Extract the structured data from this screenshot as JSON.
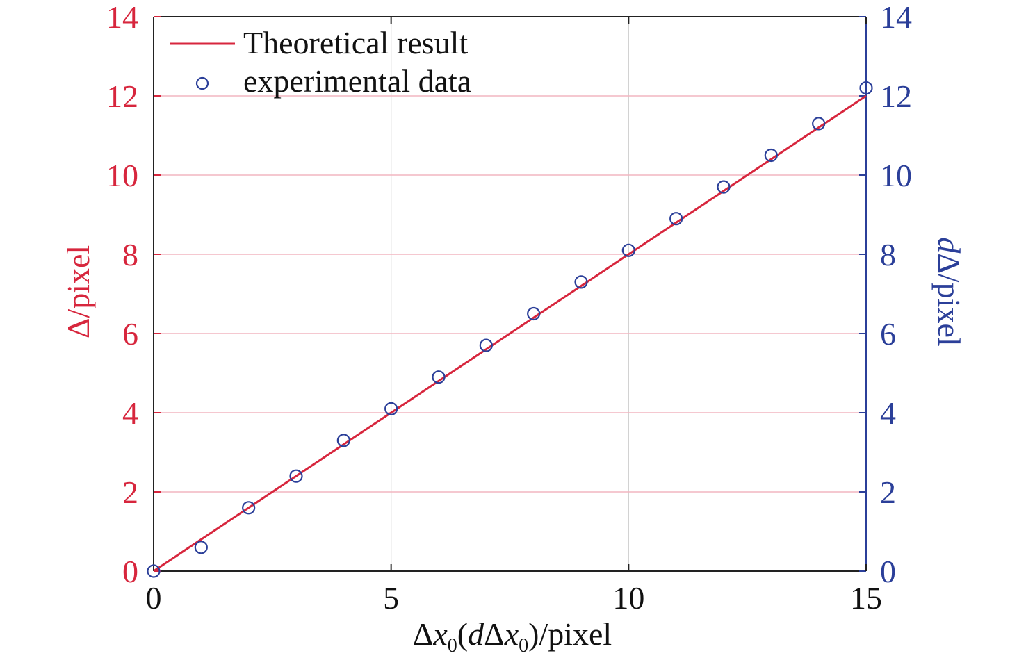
{
  "chart_data": {
    "type": "line",
    "x": [
      0,
      1,
      2,
      3,
      4,
      5,
      6,
      7,
      8,
      9,
      10,
      11,
      12,
      13,
      14,
      15
    ],
    "xlim": [
      0,
      15
    ],
    "ylim": [
      0,
      14
    ],
    "y2lim": [
      0,
      14
    ],
    "xticks": [
      0,
      5,
      10,
      15
    ],
    "yticks": [
      0,
      2,
      4,
      6,
      8,
      10,
      12,
      14
    ],
    "y2ticks": [
      0,
      2,
      4,
      6,
      8,
      10,
      12,
      14
    ],
    "xticklabels": [
      "0",
      "5",
      "10",
      "15"
    ],
    "yticklabels": [
      "0",
      "2",
      "4",
      "6",
      "8",
      "10",
      "12",
      "14"
    ],
    "y2ticklabels": [
      "0",
      "2",
      "4",
      "6",
      "8",
      "10",
      "12",
      "14"
    ],
    "xlabel": {
      "delta": "Δ",
      "x": "x",
      "sub0": "0",
      "open": "(",
      "d": "d",
      "delta2": "Δ",
      "x2": "x",
      "sub1": "0",
      "close": ")",
      "suffix": "/pixel"
    },
    "ylabel": "Δ/pixel",
    "y2label": {
      "d": "d",
      "rest": "Δ/pixel"
    },
    "grid": true,
    "legend_position": "top-left",
    "series": [
      {
        "name": "Theoretical result",
        "axis": "left",
        "style": "line",
        "x": [
          0,
          15
        ],
        "values": [
          0,
          12.0
        ]
      },
      {
        "name": "experimental data",
        "axis": "right",
        "style": "circle-markers",
        "x": [
          0,
          1,
          2,
          3,
          4,
          5,
          6,
          7,
          8,
          9,
          10,
          11,
          12,
          13,
          14,
          15
        ],
        "values": [
          0,
          0.6,
          1.6,
          2.4,
          3.3,
          4.1,
          4.9,
          5.7,
          6.5,
          7.3,
          8.1,
          8.9,
          9.7,
          10.5,
          11.3,
          12.2
        ]
      }
    ],
    "colors": {
      "left_axis": "#d7263d",
      "right_axis": "#2b3f99",
      "line": "#d7263d",
      "markers": "#2b3f99",
      "grid": "#cfcfcf",
      "grid_red": "#f2b6c0",
      "frame": "#222222"
    }
  }
}
